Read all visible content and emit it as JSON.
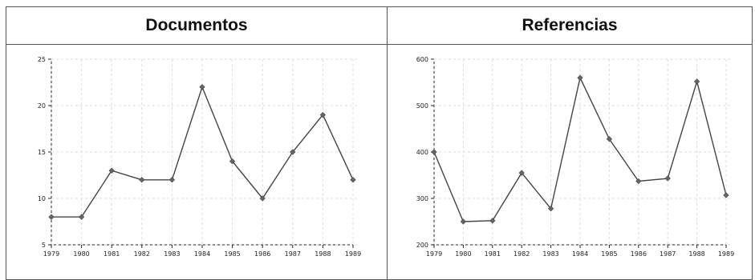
{
  "panels": [
    {
      "title": "Documentos"
    },
    {
      "title": "Referencias"
    }
  ],
  "chart_data": [
    {
      "type": "line",
      "title": "",
      "xlabel": "",
      "ylabel": "",
      "x": [
        "1979",
        "1980",
        "1981",
        "1982",
        "1983",
        "1984",
        "1985",
        "1986",
        "1987",
        "1988",
        "1989"
      ],
      "series": [
        {
          "values": [
            8,
            8,
            13,
            12,
            12,
            22,
            14,
            10,
            15,
            19,
            12
          ]
        }
      ],
      "ylim": [
        5,
        25
      ],
      "yticks": [
        5,
        10,
        15,
        20,
        25
      ],
      "grid": true,
      "line_color": "#444444",
      "marker_color": "#666666"
    },
    {
      "type": "line",
      "title": "",
      "xlabel": "",
      "ylabel": "",
      "x": [
        "1979",
        "1980",
        "1981",
        "1982",
        "1983",
        "1984",
        "1985",
        "1986",
        "1987",
        "1988",
        "1989"
      ],
      "series": [
        {
          "values": [
            400,
            250,
            252,
            355,
            278,
            560,
            428,
            337,
            343,
            552,
            307
          ]
        }
      ],
      "ylim": [
        200,
        600
      ],
      "yticks": [
        200,
        300,
        400,
        500,
        600
      ],
      "grid": true,
      "line_color": "#444444",
      "marker_color": "#666666"
    }
  ]
}
